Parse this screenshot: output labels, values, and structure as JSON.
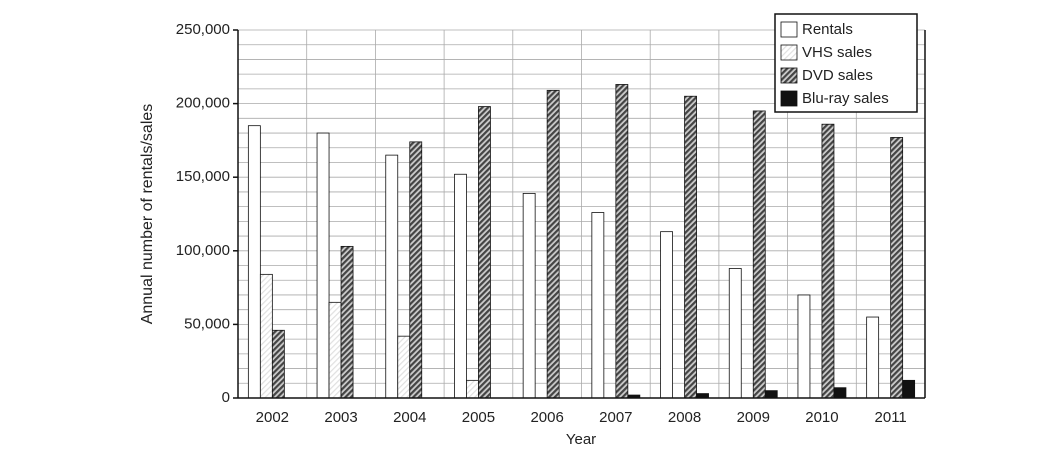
{
  "chart_data": {
    "type": "bar",
    "x_label": "Year",
    "y_label": "Annual number of rentals/sales",
    "categories": [
      "2002",
      "2003",
      "2004",
      "2005",
      "2006",
      "2007",
      "2008",
      "2009",
      "2010",
      "2011"
    ],
    "series": [
      {
        "name": "Rentals",
        "color": "#ffffff",
        "hatch": false,
        "values": [
          185000,
          180000,
          165000,
          152000,
          139000,
          126000,
          113000,
          88000,
          70000,
          55000
        ]
      },
      {
        "name": "VHS sales",
        "color": "#e0e0e0",
        "hatch": true,
        "values": [
          84000,
          65000,
          42000,
          12000,
          0,
          0,
          0,
          0,
          0,
          0
        ]
      },
      {
        "name": "DVD sales",
        "color": "#444444",
        "hatch": true,
        "values": [
          46000,
          103000,
          174000,
          198000,
          209000,
          213000,
          205000,
          195000,
          186000,
          177000
        ]
      },
      {
        "name": "Blu-ray sales",
        "color": "#111111",
        "hatch": false,
        "values": [
          0,
          0,
          0,
          0,
          0,
          2000,
          3000,
          5000,
          7000,
          12000
        ]
      }
    ],
    "ylim": [
      0,
      250000
    ],
    "yticks": [
      0,
      {
        "value": 50000,
        "label": "50,000"
      },
      {
        "value": 100000,
        "label": "100,000"
      },
      {
        "value": 150000,
        "label": "150,000"
      },
      {
        "value": 200000,
        "label": "200,000"
      },
      {
        "value": 250000,
        "label": "250,000"
      }
    ],
    "minor_yticks": [
      10000,
      20000,
      30000,
      40000,
      60000,
      70000,
      80000,
      90000,
      110000,
      120000,
      130000,
      140000,
      160000,
      170000,
      180000,
      190000,
      210000,
      220000,
      230000,
      240000
    ],
    "grid": true,
    "legend": "upper right"
  }
}
